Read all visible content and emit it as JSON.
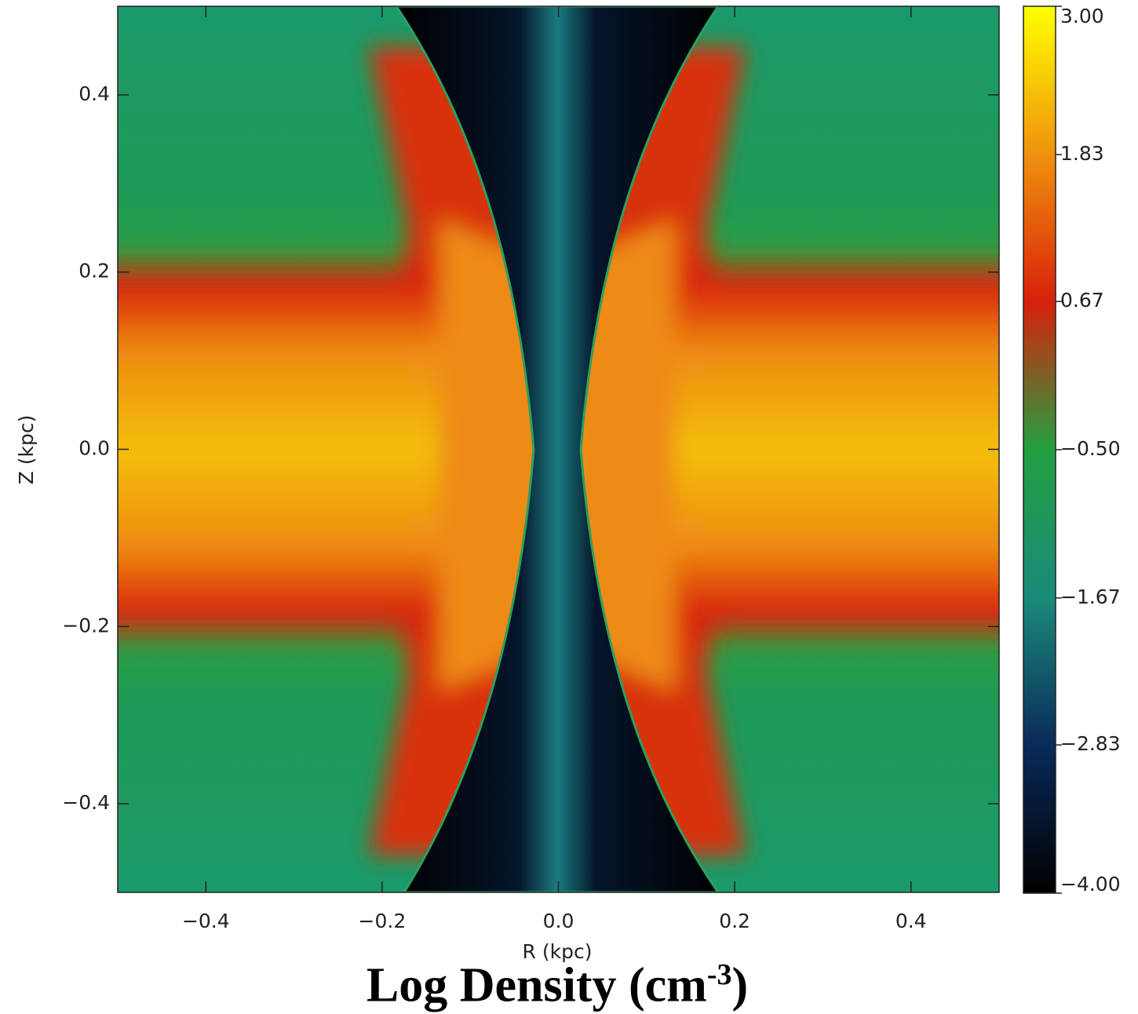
{
  "chart_data": {
    "type": "heatmap",
    "xlabel": "R (kpc)",
    "ylabel": "Z (kpc)",
    "xlim": [
      -0.5,
      0.5
    ],
    "ylim": [
      -0.5,
      0.5
    ],
    "xticks": [
      {
        "value": -0.4,
        "label": "−0.4"
      },
      {
        "value": -0.2,
        "label": "−0.2"
      },
      {
        "value": 0,
        "label": "0.0"
      },
      0.2,
      0.4
    ],
    "yticks": [
      {
        "value": -0.4,
        "label": "−0.4"
      },
      {
        "value": -0.2,
        "label": "−0.2"
      },
      {
        "value": 0,
        "label": "0.0"
      },
      0.2,
      0.4
    ],
    "colorbar": {
      "lim": [
        -4,
        3
      ],
      "ticks": [
        {
          "value": 3,
          "label": "3.00"
        },
        1.83,
        0.67,
        {
          "value": -0.5,
          "label": "−0.50"
        },
        {
          "value": -1.67,
          "label": "−1.67"
        },
        {
          "value": -2.83,
          "label": "−2.83"
        },
        {
          "value": -4,
          "label": "−4.00"
        }
      ],
      "colors": [
        "#000000",
        "#0a2a5a",
        "#1a8a7a",
        "#22a040",
        "#d8200a",
        "#f0920e",
        "#ffff00"
      ],
      "label": [
        "Log Density (cm",
        "-3",
        ")"
      ]
    }
  }
}
